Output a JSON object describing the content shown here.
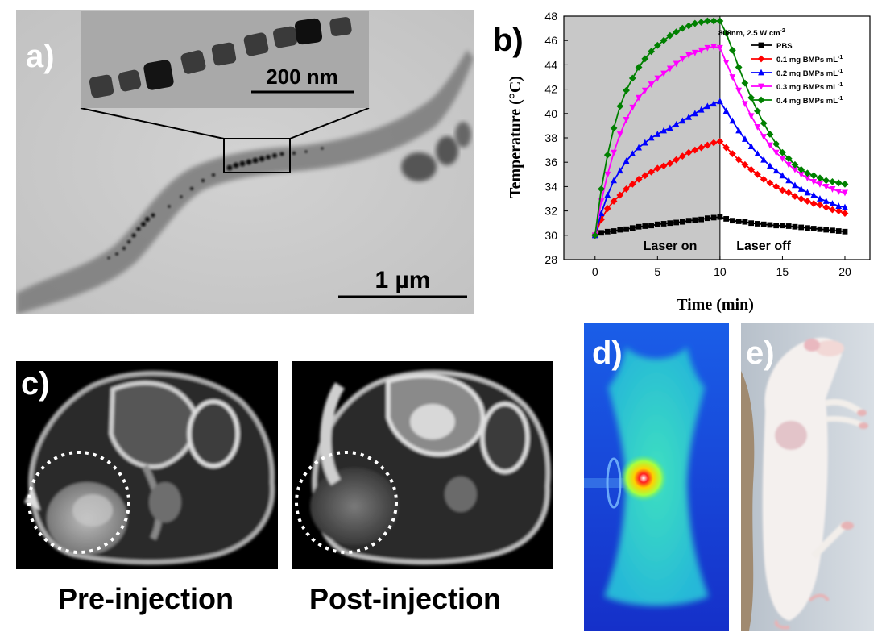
{
  "figure": {
    "panel_a": {
      "label": "a)",
      "scale_bar_main": "1 µm",
      "scale_bar_inset": "200 nm"
    },
    "panel_b": {
      "label": "b)"
    },
    "panel_c": {
      "label": "c)",
      "left_caption": "Pre-injection",
      "right_caption": "Post-injection"
    },
    "panel_d": {
      "label": "d)"
    },
    "panel_e": {
      "label": "e)"
    }
  },
  "chart_data": {
    "type": "line",
    "title": "",
    "annotation_top": "808nm, 2.5 W cm",
    "annotation_top_sup": "-2",
    "xlabel": "Time (min)",
    "ylabel": "Temperature  (°C)",
    "xlim": [
      -2.5,
      22
    ],
    "ylim": [
      28,
      48
    ],
    "xticks": [
      0,
      5,
      10,
      15,
      20
    ],
    "yticks": [
      28,
      30,
      32,
      34,
      36,
      38,
      40,
      42,
      44,
      46,
      48
    ],
    "divider_x": 10,
    "shaded_region": [
      -2.5,
      10
    ],
    "region_labels": [
      "Laser on",
      "Laser off"
    ],
    "legend_position": "top-right",
    "x": [
      0,
      0.5,
      1,
      1.5,
      2,
      2.5,
      3,
      3.5,
      4,
      4.5,
      5,
      5.5,
      6,
      6.5,
      7,
      7.5,
      8,
      8.5,
      9,
      9.5,
      10,
      10.5,
      11,
      11.5,
      12,
      12.5,
      13,
      13.5,
      14,
      14.5,
      15,
      15.5,
      16,
      16.5,
      17,
      17.5,
      18,
      18.5,
      19,
      19.5,
      20
    ],
    "series": [
      {
        "name": "PBS",
        "color": "#000000",
        "marker": "square",
        "unit_sup": "",
        "values": [
          30.0,
          30.2,
          30.3,
          30.35,
          30.45,
          30.5,
          30.6,
          30.7,
          30.75,
          30.8,
          30.9,
          30.95,
          31.0,
          31.05,
          31.1,
          31.2,
          31.25,
          31.3,
          31.4,
          31.45,
          31.5,
          31.35,
          31.2,
          31.15,
          31.1,
          31.0,
          30.95,
          30.9,
          30.85,
          30.8,
          30.8,
          30.75,
          30.7,
          30.65,
          30.6,
          30.55,
          30.5,
          30.45,
          30.4,
          30.35,
          30.3
        ]
      },
      {
        "name": "0.1 mg BMPs mL",
        "color": "#ff0000",
        "marker": "diamond",
        "unit_sup": "-1",
        "values": [
          30.0,
          31.3,
          32.2,
          32.8,
          33.3,
          33.8,
          34.2,
          34.6,
          34.9,
          35.2,
          35.5,
          35.7,
          35.9,
          36.2,
          36.5,
          36.8,
          37.0,
          37.2,
          37.4,
          37.6,
          37.7,
          37.2,
          36.7,
          36.2,
          35.8,
          35.4,
          35.0,
          34.6,
          34.3,
          34.0,
          33.7,
          33.5,
          33.2,
          33.0,
          32.8,
          32.6,
          32.5,
          32.3,
          32.1,
          32.0,
          31.8
        ]
      },
      {
        "name": "0.2 mg BMPs mL",
        "color": "#0000ff",
        "marker": "triangle-up",
        "unit_sup": "-1",
        "values": [
          30.0,
          31.8,
          33.3,
          34.5,
          35.3,
          36.1,
          36.7,
          37.2,
          37.6,
          38.0,
          38.3,
          38.6,
          38.8,
          39.1,
          39.4,
          39.7,
          40.0,
          40.3,
          40.6,
          40.8,
          41.0,
          40.2,
          39.4,
          38.6,
          37.9,
          37.3,
          36.7,
          36.2,
          35.7,
          35.3,
          34.9,
          34.5,
          34.1,
          33.8,
          33.5,
          33.3,
          33.0,
          32.8,
          32.6,
          32.4,
          32.3
        ]
      },
      {
        "name": "0.3 mg BMPs mL",
        "color": "#ff00ff",
        "marker": "triangle-down",
        "unit_sup": "-1",
        "values": [
          30.0,
          32.8,
          35.0,
          36.8,
          38.3,
          39.5,
          40.5,
          41.3,
          41.9,
          42.4,
          42.9,
          43.3,
          43.7,
          44.1,
          44.5,
          44.8,
          45.0,
          45.2,
          45.4,
          45.5,
          45.4,
          44.2,
          43.0,
          41.9,
          40.8,
          39.8,
          38.9,
          38.1,
          37.4,
          36.8,
          36.3,
          35.8,
          35.4,
          35.0,
          34.7,
          34.4,
          34.2,
          34.0,
          33.8,
          33.6,
          33.5
        ]
      },
      {
        "name": "0.4 mg BMPs mL",
        "color": "#008000",
        "marker": "diamond",
        "unit_sup": "-1",
        "values": [
          30.0,
          33.8,
          36.6,
          38.8,
          40.6,
          41.9,
          42.9,
          43.8,
          44.5,
          45.1,
          45.6,
          46.0,
          46.4,
          46.7,
          47.0,
          47.2,
          47.4,
          47.5,
          47.6,
          47.6,
          47.6,
          46.6,
          45.2,
          43.8,
          42.5,
          41.3,
          40.2,
          39.2,
          38.3,
          37.5,
          36.8,
          36.3,
          35.8,
          35.4,
          35.1,
          34.9,
          34.7,
          34.5,
          34.4,
          34.3,
          34.2
        ]
      }
    ]
  }
}
